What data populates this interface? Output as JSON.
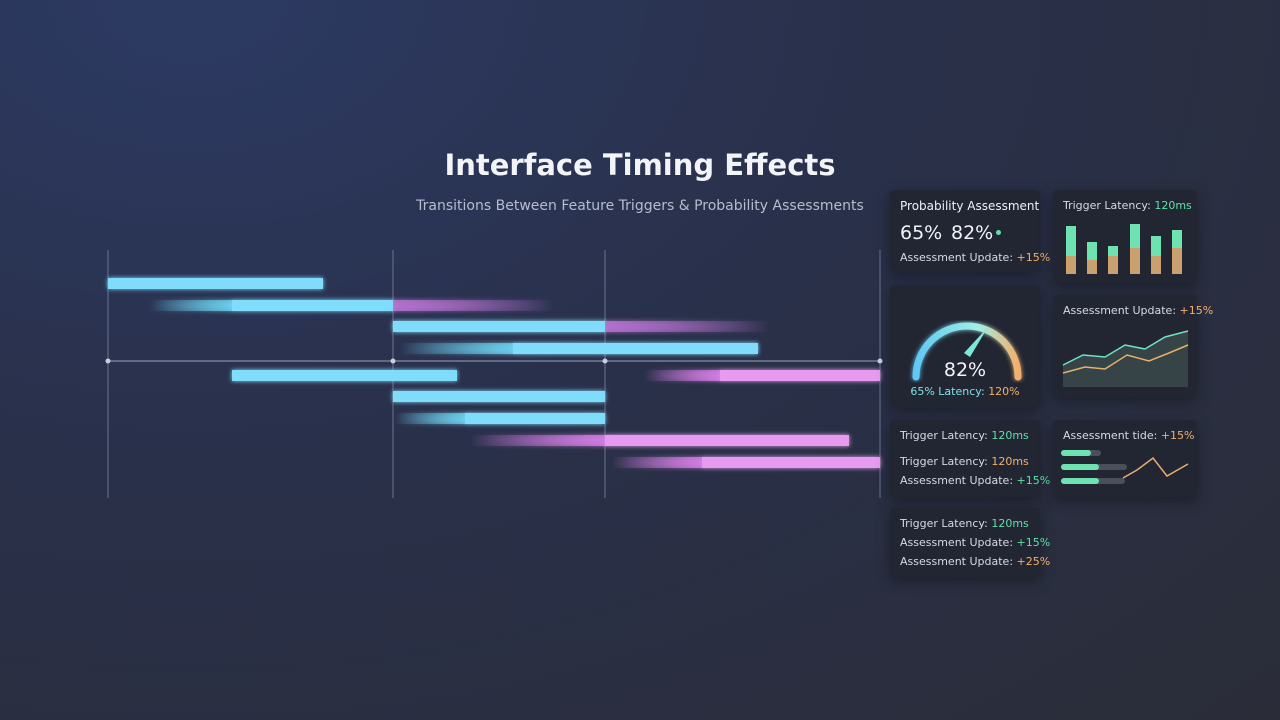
{
  "header": {
    "title": "Interface Timing Effects",
    "subtitle": "Transitions Between Feature Triggers & Probability Assessments"
  },
  "cards": [
    {
      "title": "Probability Assessment",
      "stats": [
        "65%",
        "82%"
      ],
      "rows": [
        {
          "label": "Assessment Update:",
          "value": "+15%"
        }
      ]
    },
    {
      "rows": [
        {
          "label": "Trigger Latency:",
          "value": "120ms"
        }
      ]
    },
    {
      "gauge": "82%",
      "rows": [
        {
          "label": "65% Latency:",
          "value": "120%"
        }
      ]
    },
    {
      "rows": [
        {
          "label": "Assessment Update:",
          "value": "+15%"
        }
      ]
    },
    {
      "rows": [
        {
          "label": "Trigger Latency:",
          "value": "120ms"
        },
        {
          "label": "Trigger Latency:",
          "value": "120ms"
        },
        {
          "label": "Assessment Update:",
          "value": "+15%"
        }
      ]
    },
    {
      "rows": [
        {
          "label": "Assessment tide:",
          "value": "+15%"
        }
      ]
    },
    {
      "rows": [
        {
          "label": "Trigger Latency:",
          "value": "120ms"
        },
        {
          "label": "Assessment Update:",
          "value": "+15%"
        },
        {
          "label": "Assessment Update:",
          "value": "+25%"
        }
      ]
    }
  ]
}
